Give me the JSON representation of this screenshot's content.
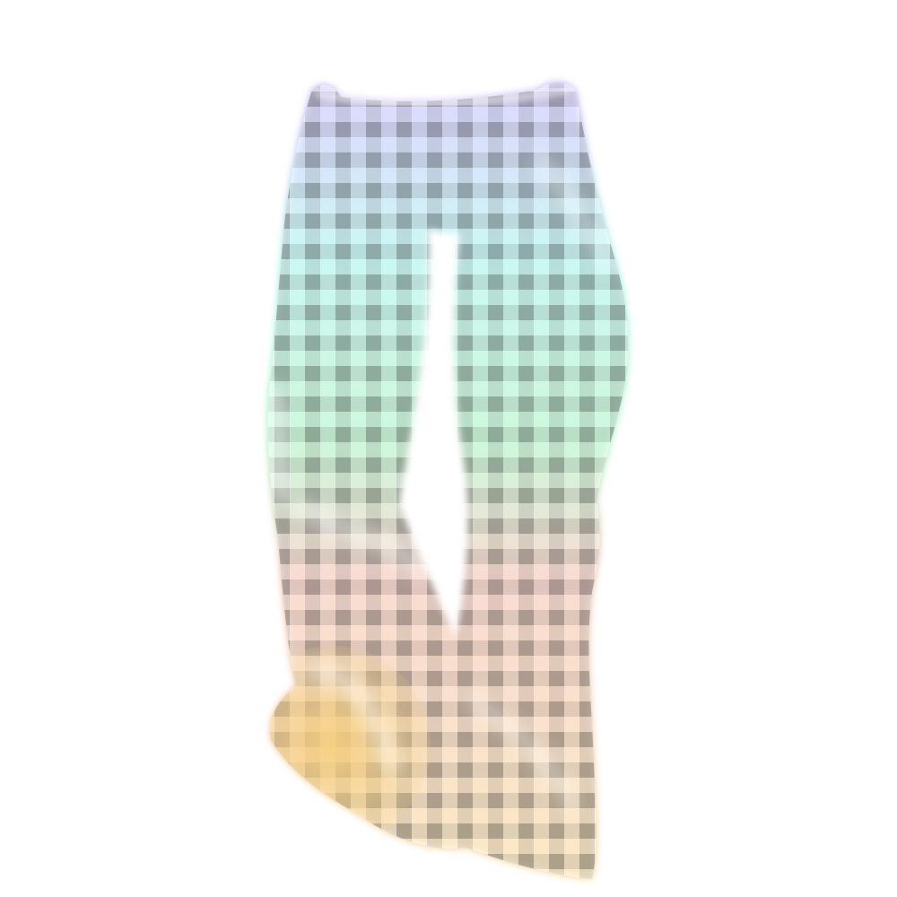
{
  "image": {
    "subject": "pants-product-photo",
    "pattern": "gingham-check",
    "background": "#ffffff",
    "gradient_colors": [
      "#b9a4ff",
      "#8ef0e6",
      "#93f0b0",
      "#f3b09d",
      "#f6cf7f"
    ]
  }
}
